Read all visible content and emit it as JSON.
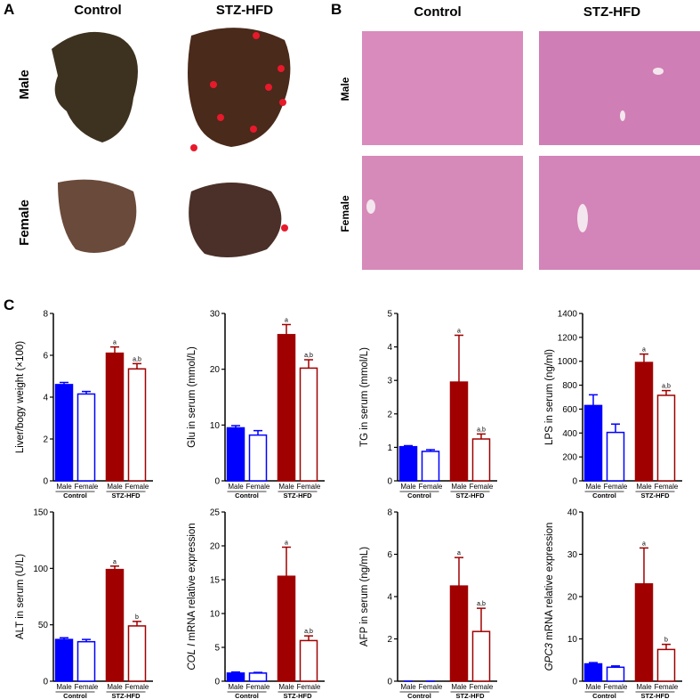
{
  "panel_a": {
    "label": "A",
    "columns": [
      "Control",
      "STZ-HFD"
    ],
    "rows": [
      "Male",
      "Female"
    ]
  },
  "panel_b": {
    "label": "B",
    "columns": [
      "Control",
      "STZ-HFD"
    ],
    "rows": [
      "Male",
      "Female"
    ]
  },
  "panel_c": {
    "label": "C"
  },
  "chart_data": [
    {
      "type": "bar",
      "ylabel": "Liver/bogy weight (×100)",
      "categories": [
        "Male",
        "Female",
        "Male",
        "Female"
      ],
      "groups": [
        "Control",
        "STZ-HFD"
      ],
      "values": [
        4.6,
        4.15,
        6.1,
        5.35
      ],
      "errors": [
        0.1,
        0.12,
        0.3,
        0.25
      ],
      "annotations": [
        null,
        null,
        "a",
        "a,b"
      ],
      "colors": [
        "#0000ff",
        "#0000ff",
        "#a00000",
        "#a00000"
      ],
      "filled": [
        true,
        false,
        true,
        false
      ],
      "ylim": [
        0,
        8
      ],
      "yticks": [
        0,
        2,
        4,
        6,
        8
      ]
    },
    {
      "type": "bar",
      "ylabel": "Glu in serum (mmol/L)",
      "categories": [
        "Male",
        "Female",
        "Male",
        "Female"
      ],
      "groups": [
        "Control",
        "STZ-HFD"
      ],
      "values": [
        9.5,
        8.2,
        26.2,
        20.2
      ],
      "errors": [
        0.4,
        0.8,
        1.8,
        1.5
      ],
      "annotations": [
        null,
        null,
        "a",
        "a,b"
      ],
      "colors": [
        "#0000ff",
        "#0000ff",
        "#a00000",
        "#a00000"
      ],
      "filled": [
        true,
        false,
        true,
        false
      ],
      "ylim": [
        0,
        30
      ],
      "yticks": [
        0,
        10,
        20,
        30
      ]
    },
    {
      "type": "bar",
      "ylabel": "TG in serum (mmol/L)",
      "categories": [
        "Male",
        "Female",
        "Male",
        "Female"
      ],
      "groups": [
        "Control",
        "STZ-HFD"
      ],
      "values": [
        1.02,
        0.88,
        2.95,
        1.25
      ],
      "errors": [
        0.03,
        0.05,
        1.4,
        0.15
      ],
      "annotations": [
        null,
        null,
        "a",
        "a,b"
      ],
      "colors": [
        "#0000ff",
        "#0000ff",
        "#a00000",
        "#a00000"
      ],
      "filled": [
        true,
        false,
        true,
        false
      ],
      "ylim": [
        0,
        5
      ],
      "yticks": [
        0,
        1,
        2,
        3,
        4,
        5
      ]
    },
    {
      "type": "bar",
      "ylabel": "LPS in serum (ng/ml)",
      "categories": [
        "Male",
        "Female",
        "Male",
        "Female"
      ],
      "groups": [
        "Control",
        "STZ-HFD"
      ],
      "values": [
        630,
        405,
        990,
        715
      ],
      "errors": [
        90,
        70,
        70,
        40
      ],
      "annotations": [
        null,
        null,
        "a",
        "a,b"
      ],
      "colors": [
        "#0000ff",
        "#0000ff",
        "#a00000",
        "#a00000"
      ],
      "filled": [
        true,
        false,
        true,
        false
      ],
      "ylim": [
        0,
        1400
      ],
      "yticks": [
        0,
        200,
        400,
        600,
        800,
        1000,
        1200,
        1400
      ]
    },
    {
      "type": "bar",
      "ylabel": "ALT in serum (U/L)",
      "categories": [
        "Male",
        "Female",
        "Male",
        "Female"
      ],
      "groups": [
        "Control",
        "STZ-HFD"
      ],
      "values": [
        37,
        35,
        99,
        49
      ],
      "errors": [
        1.5,
        2,
        3,
        4
      ],
      "annotations": [
        null,
        null,
        "a",
        "b"
      ],
      "colors": [
        "#0000ff",
        "#0000ff",
        "#a00000",
        "#a00000"
      ],
      "filled": [
        true,
        false,
        true,
        false
      ],
      "ylim": [
        0,
        150
      ],
      "yticks": [
        0,
        50,
        100,
        150
      ]
    },
    {
      "type": "bar",
      "ylabel": [
        "COL I",
        "mRNA relative expression"
      ],
      "categories": [
        "Male",
        "Female",
        "Male",
        "Female"
      ],
      "groups": [
        "Control",
        "STZ-HFD"
      ],
      "values": [
        1.2,
        1.2,
        15.5,
        6
      ],
      "errors": [
        0.15,
        0.1,
        4.3,
        0.7
      ],
      "annotations": [
        null,
        null,
        "a",
        "a,b"
      ],
      "colors": [
        "#0000ff",
        "#0000ff",
        "#a00000",
        "#a00000"
      ],
      "filled": [
        true,
        false,
        true,
        false
      ],
      "ylim": [
        0,
        25
      ],
      "yticks": [
        0,
        5,
        10,
        15,
        20,
        25
      ]
    },
    {
      "type": "bar",
      "ylabel": "AFP in serum (ng/mL)",
      "categories": [
        "Male",
        "Female",
        "Male",
        "Female"
      ],
      "groups": [
        "Control",
        "STZ-HFD"
      ],
      "values": [
        0,
        0,
        4.5,
        2.35
      ],
      "errors": [
        0,
        0,
        1.35,
        1.1
      ],
      "annotations": [
        null,
        null,
        "a",
        "a,b"
      ],
      "colors": [
        "#0000ff",
        "#0000ff",
        "#a00000",
        "#a00000"
      ],
      "filled": [
        true,
        false,
        true,
        false
      ],
      "ylim": [
        0,
        8
      ],
      "yticks": [
        0,
        2,
        4,
        6,
        8
      ]
    },
    {
      "type": "bar",
      "ylabel": [
        "GPC3",
        "mRNA relative expression"
      ],
      "categories": [
        "Male",
        "Female",
        "Male",
        "Female"
      ],
      "groups": [
        "Control",
        "STZ-HFD"
      ],
      "values": [
        4.1,
        3.3,
        23,
        7.5
      ],
      "errors": [
        0.3,
        0.3,
        8.5,
        1.2
      ],
      "annotations": [
        null,
        null,
        "a",
        "b"
      ],
      "colors": [
        "#0000ff",
        "#0000ff",
        "#a00000",
        "#a00000"
      ],
      "filled": [
        true,
        false,
        true,
        false
      ],
      "ylim": [
        0,
        40
      ],
      "yticks": [
        0,
        10,
        20,
        30,
        40
      ]
    }
  ]
}
